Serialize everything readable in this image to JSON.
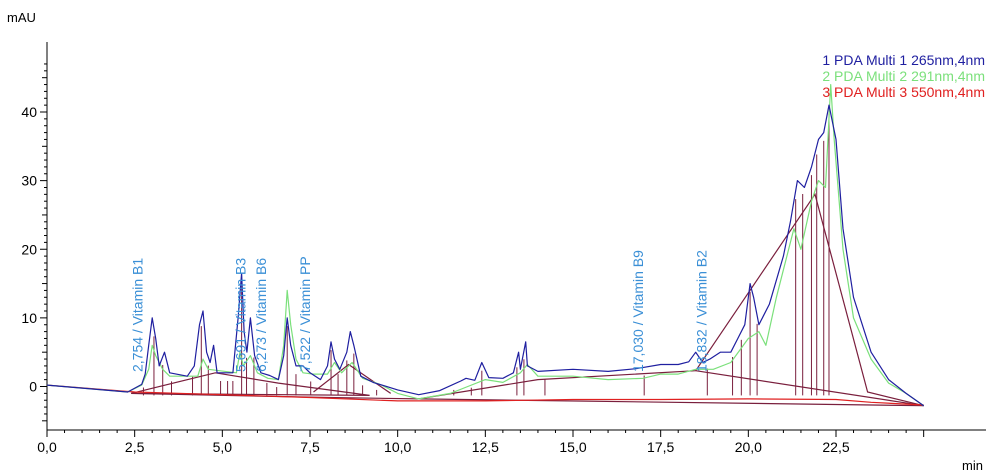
{
  "chart_data": {
    "type": "line",
    "title": "",
    "xlabel": "min",
    "ylabel": "mAU",
    "xlim": [
      0,
      25
    ],
    "ylim": [
      -5,
      48
    ],
    "x_ticks": [
      0,
      2.5,
      5,
      7.5,
      10,
      12.5,
      15,
      17.5,
      20,
      22.5
    ],
    "x_tick_labels": [
      "0,0",
      "2,5",
      "5,0",
      "7,5",
      "10,0",
      "12,5",
      "15,0",
      "17,5",
      "20,0",
      "22,5"
    ],
    "y_ticks": [
      0,
      10,
      20,
      30,
      40
    ],
    "y_tick_labels": [
      "0",
      "10",
      "20",
      "30",
      "40"
    ],
    "legend_position": "top-right",
    "colors": {
      "series1": "#1f1fa0",
      "series2": "#7be07b",
      "series3": "#e02020",
      "baseline": "#7a1f3d",
      "label": "#3a8fd6"
    },
    "series": [
      {
        "name": "1 PDA Multi 1 265nm,4nm",
        "points": [
          [
            0,
            0.2
          ],
          [
            2.3,
            -0.8
          ],
          [
            2.7,
            0.3
          ],
          [
            2.8,
            1.8
          ],
          [
            2.9,
            6
          ],
          [
            3.0,
            10
          ],
          [
            3.1,
            7
          ],
          [
            3.2,
            3
          ],
          [
            3.35,
            5
          ],
          [
            3.5,
            2
          ],
          [
            4.0,
            1.5
          ],
          [
            4.2,
            3
          ],
          [
            4.35,
            9
          ],
          [
            4.45,
            11
          ],
          [
            4.55,
            5
          ],
          [
            4.65,
            3.5
          ],
          [
            4.75,
            6
          ],
          [
            4.85,
            2
          ],
          [
            5.3,
            2
          ],
          [
            5.45,
            10
          ],
          [
            5.55,
            16.5
          ],
          [
            5.62,
            8
          ],
          [
            5.7,
            5
          ],
          [
            5.8,
            10
          ],
          [
            5.92,
            4.5
          ],
          [
            6.1,
            2
          ],
          [
            6.35,
            1.6
          ],
          [
            6.6,
            1
          ],
          [
            6.75,
            4.5
          ],
          [
            6.85,
            10
          ],
          [
            6.95,
            6
          ],
          [
            7.1,
            3
          ],
          [
            7.3,
            3
          ],
          [
            7.5,
            2
          ],
          [
            7.8,
            1
          ],
          [
            8.0,
            3
          ],
          [
            8.1,
            6.5
          ],
          [
            8.2,
            4
          ],
          [
            8.35,
            2.5
          ],
          [
            8.55,
            5
          ],
          [
            8.65,
            8
          ],
          [
            8.75,
            6
          ],
          [
            8.95,
            1.5
          ],
          [
            9.3,
            0.6
          ],
          [
            10.0,
            -0.5
          ],
          [
            10.6,
            -1.2
          ],
          [
            11.2,
            -0.6
          ],
          [
            11.8,
            0.8
          ],
          [
            11.95,
            1.2
          ],
          [
            12.2,
            0.9
          ],
          [
            12.4,
            3.5
          ],
          [
            12.6,
            1.3
          ],
          [
            13.0,
            1.2
          ],
          [
            13.3,
            2
          ],
          [
            13.45,
            5
          ],
          [
            13.5,
            2.5
          ],
          [
            13.65,
            6.5
          ],
          [
            13.7,
            3
          ],
          [
            14.0,
            2.2
          ],
          [
            15.0,
            2.5
          ],
          [
            16.0,
            2.2
          ],
          [
            16.8,
            2.6
          ],
          [
            17.5,
            3.2
          ],
          [
            18.0,
            3.2
          ],
          [
            18.3,
            3.6
          ],
          [
            18.5,
            5
          ],
          [
            18.7,
            3.5
          ],
          [
            18.9,
            4
          ],
          [
            19.2,
            5
          ],
          [
            19.5,
            5
          ],
          [
            19.7,
            7
          ],
          [
            19.9,
            9
          ],
          [
            20.05,
            15
          ],
          [
            20.15,
            13
          ],
          [
            20.3,
            9
          ],
          [
            20.6,
            12
          ],
          [
            21.0,
            19
          ],
          [
            21.2,
            24
          ],
          [
            21.4,
            30
          ],
          [
            21.6,
            29
          ],
          [
            21.8,
            32
          ],
          [
            22.0,
            36
          ],
          [
            22.15,
            37
          ],
          [
            22.3,
            41
          ],
          [
            22.5,
            36
          ],
          [
            22.7,
            23
          ],
          [
            23.0,
            13
          ],
          [
            23.5,
            5
          ],
          [
            24.0,
            1
          ],
          [
            24.5,
            -1
          ],
          [
            25.0,
            -2.8
          ]
        ]
      },
      {
        "name": "2 PDA Multi 2 291nm,4nm",
        "points": [
          [
            0,
            0.2
          ],
          [
            2.3,
            -0.8
          ],
          [
            2.7,
            0.2
          ],
          [
            2.9,
            2.5
          ],
          [
            3.0,
            6
          ],
          [
            3.1,
            4.5
          ],
          [
            3.3,
            2.5
          ],
          [
            3.5,
            1.5
          ],
          [
            4.3,
            1.5
          ],
          [
            4.45,
            4
          ],
          [
            4.6,
            2.5
          ],
          [
            5.4,
            2
          ],
          [
            5.5,
            5
          ],
          [
            5.6,
            3
          ],
          [
            5.8,
            4.5
          ],
          [
            6.0,
            2
          ],
          [
            6.3,
            1.2
          ],
          [
            6.6,
            1
          ],
          [
            6.75,
            6
          ],
          [
            6.85,
            14
          ],
          [
            6.95,
            9
          ],
          [
            7.1,
            4
          ],
          [
            7.3,
            2
          ],
          [
            7.6,
            1.8
          ],
          [
            8.0,
            1.8
          ],
          [
            8.2,
            3.5
          ],
          [
            8.4,
            2
          ],
          [
            8.7,
            3.5
          ],
          [
            9.0,
            1.2
          ],
          [
            9.5,
            0.3
          ],
          [
            10.0,
            -1
          ],
          [
            10.6,
            -1.8
          ],
          [
            11.5,
            -1
          ],
          [
            12.0,
            0
          ],
          [
            12.5,
            1
          ],
          [
            13.0,
            0.6
          ],
          [
            13.5,
            2
          ],
          [
            13.7,
            3.2
          ],
          [
            14.0,
            1.5
          ],
          [
            15.0,
            1.5
          ],
          [
            16.0,
            1
          ],
          [
            17.0,
            1.2
          ],
          [
            17.5,
            1.8
          ],
          [
            18.0,
            1.8
          ],
          [
            18.5,
            2.5
          ],
          [
            19.0,
            2.5
          ],
          [
            19.5,
            3.5
          ],
          [
            20.0,
            7
          ],
          [
            20.3,
            8
          ],
          [
            20.5,
            6
          ],
          [
            20.8,
            13
          ],
          [
            21.0,
            17
          ],
          [
            21.3,
            23
          ],
          [
            21.5,
            20
          ],
          [
            21.8,
            27
          ],
          [
            22.0,
            30
          ],
          [
            22.2,
            29
          ],
          [
            22.35,
            44
          ],
          [
            22.45,
            36
          ],
          [
            22.7,
            20
          ],
          [
            23.0,
            10
          ],
          [
            23.5,
            4
          ],
          [
            24.0,
            0.5
          ],
          [
            24.5,
            -1
          ],
          [
            25.0,
            -2.8
          ]
        ]
      },
      {
        "name": "3 PDA Multi 3 550nm,4nm",
        "points": [
          [
            0,
            0.2
          ],
          [
            2.5,
            -0.8
          ],
          [
            5.0,
            -1.2
          ],
          [
            7.5,
            -1.6
          ],
          [
            10.0,
            -2.1
          ],
          [
            12.5,
            -2.1
          ],
          [
            15.0,
            -1.9
          ],
          [
            17.5,
            -1.9
          ],
          [
            20.0,
            -1.8
          ],
          [
            22.5,
            -1.9
          ],
          [
            23.5,
            -2.3
          ],
          [
            25.0,
            -2.7
          ]
        ]
      }
    ],
    "baselines": [
      [
        [
          2.4,
          -1.0
        ],
        [
          4.8,
          2.0
        ],
        [
          6.6,
          0.5
        ],
        [
          9.2,
          -1.3
        ],
        [
          2.4,
          -1.0
        ]
      ],
      [
        [
          7.6,
          -0.8
        ],
        [
          8.6,
          3.2
        ],
        [
          9.8,
          -1.0
        ]
      ],
      [
        [
          2.4,
          -1.0
        ],
        [
          8.0,
          -1.6
        ],
        [
          10.6,
          -1.8
        ],
        [
          14.0,
          1.0
        ],
        [
          18.5,
          2.3
        ],
        [
          21.9,
          28
        ],
        [
          23.4,
          -0.8
        ],
        [
          25.0,
          -2.8
        ]
      ],
      [
        [
          18.5,
          2.3
        ],
        [
          25.0,
          -2.8
        ]
      ],
      [
        [
          10.6,
          -1.8
        ],
        [
          25.0,
          -2.8
        ]
      ]
    ],
    "peak_markers": [
      2.75,
      3.05,
      3.3,
      3.55,
      4.15,
      4.4,
      4.6,
      4.95,
      5.15,
      5.3,
      5.55,
      5.69,
      5.9,
      6.27,
      6.55,
      6.85,
      7.1,
      7.52,
      8.1,
      8.3,
      8.55,
      8.75,
      9.0,
      9.4,
      11.6,
      12.1,
      12.4,
      13.4,
      13.6,
      14.2,
      17.03,
      18.83,
      19.55,
      19.8,
      20.05,
      20.25,
      21.35,
      21.55,
      21.8,
      21.95,
      22.15,
      22.3
    ],
    "peak_labels": [
      {
        "x": 2.754,
        "text": "2,754 / Vitamin B1"
      },
      {
        "x": 5.691,
        "text": "5,691 / Vitamin B3"
      },
      {
        "x": 6.273,
        "text": "6,273 / Vitamin B6"
      },
      {
        "x": 7.522,
        "text": "7,522 / Vitamin PP"
      },
      {
        "x": 17.03,
        "text": "17,030 / Vitamin B9"
      },
      {
        "x": 18.832,
        "text": "18,832 / Vitamin B2"
      }
    ]
  }
}
